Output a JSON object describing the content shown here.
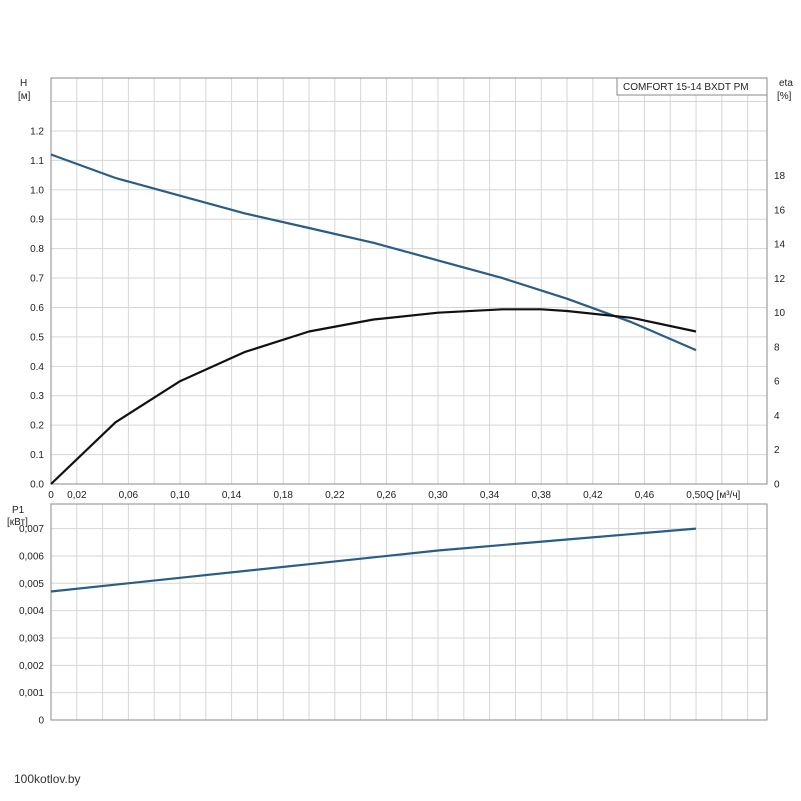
{
  "watermark": "100kotlov.by",
  "colors": {
    "head": "#2a5d86",
    "efficiency": "#111111",
    "power": "#2a5d86",
    "grid": "#d6d6d6",
    "frame": "#8a8a8a"
  },
  "chart_data": [
    {
      "type": "line",
      "title": "COMFORT 15-14 BXDT PM",
      "xlabel": "Q [м³/ч]",
      "ylabel": "H [м]",
      "y2label": "eta [%]",
      "xlim": [
        0,
        0.555
      ],
      "ylim": [
        0,
        1.38
      ],
      "y2lim": [
        0,
        23.7
      ],
      "xticks": [
        0,
        0.02,
        0.06,
        0.1,
        0.14,
        0.18,
        0.22,
        0.26,
        0.3,
        0.34,
        0.38,
        0.42,
        0.46,
        0.5
      ],
      "xtick_labels": [
        "0",
        "0,02",
        "0,06",
        "0,10",
        "0,14",
        "0,18",
        "0,22",
        "0,26",
        "0,30",
        "0,34",
        "0,38",
        "0,42",
        "0,46",
        "0,50"
      ],
      "yticks": [
        0.0,
        0.1,
        0.2,
        0.3,
        0.4,
        0.5,
        0.6,
        0.7,
        0.8,
        0.9,
        1.0,
        1.1,
        1.2
      ],
      "ytick_labels": [
        "0.0",
        "0.1",
        "0.2",
        "0.3",
        "0.4",
        "0.5",
        "0.6",
        "0.7",
        "0.8",
        "0.9",
        "1.0",
        "1.1",
        "1.2"
      ],
      "y2ticks": [
        0,
        2,
        4,
        6,
        8,
        10,
        12,
        14,
        16,
        18
      ],
      "y2tick_labels": [
        "0",
        "2",
        "4",
        "6",
        "8",
        "10",
        "12",
        "14",
        "16",
        "18"
      ],
      "grid": true,
      "series": [
        {
          "axis": "left",
          "x": [
            0,
            0.05,
            0.1,
            0.15,
            0.2,
            0.25,
            0.3,
            0.35,
            0.4,
            0.45,
            0.5
          ],
          "y": [
            1.12,
            1.04,
            0.98,
            0.92,
            0.87,
            0.82,
            0.76,
            0.7,
            0.63,
            0.55,
            0.455
          ]
        },
        {
          "axis": "right",
          "x": [
            0,
            0.05,
            0.1,
            0.15,
            0.2,
            0.25,
            0.3,
            0.35,
            0.38,
            0.4,
            0.45,
            0.5
          ],
          "y": [
            0,
            3.6,
            6.0,
            7.7,
            8.9,
            9.6,
            10.0,
            10.2,
            10.2,
            10.1,
            9.7,
            8.9
          ]
        }
      ]
    },
    {
      "type": "line",
      "ylabel": "P1 [кВт]",
      "xlim": [
        0,
        0.555
      ],
      "ylim": [
        0,
        0.0079
      ],
      "yticks": [
        0,
        0.001,
        0.002,
        0.003,
        0.004,
        0.005,
        0.006,
        0.007
      ],
      "ytick_labels": [
        "0",
        "0,001",
        "0,002",
        "0,003",
        "0,004",
        "0,005",
        "0,006",
        "0,007"
      ],
      "grid": true,
      "series": [
        {
          "axis": "left",
          "x": [
            0,
            0.1,
            0.2,
            0.3,
            0.4,
            0.5
          ],
          "y": [
            0.0047,
            0.0052,
            0.0057,
            0.0062,
            0.0066,
            0.007
          ]
        }
      ]
    }
  ]
}
